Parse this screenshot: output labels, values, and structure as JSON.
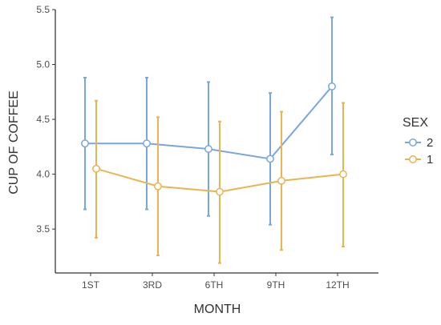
{
  "chart_data": {
    "type": "line",
    "xlabel": "MONTH",
    "ylabel": "CUP OF COFFEE",
    "categories": [
      "1ST",
      "3RD",
      "6TH",
      "9TH",
      "12TH"
    ],
    "y_ticks": [
      "3.5",
      "4.0",
      "4.5",
      "5.0",
      "5.5"
    ],
    "ylim": [
      3.1,
      5.5
    ],
    "grid": false,
    "error_bars": true,
    "legend": {
      "title": "SEX",
      "position": "right"
    },
    "series": [
      {
        "name": "2",
        "color": "#7aa6df",
        "values": [
          4.28,
          4.28,
          4.23,
          4.14,
          4.8
        ],
        "lower": [
          3.68,
          3.68,
          3.62,
          3.54,
          4.18
        ],
        "upper": [
          4.88,
          4.88,
          4.84,
          4.74,
          5.43
        ]
      },
      {
        "name": "1",
        "color": "#e8b552",
        "values": [
          4.05,
          3.89,
          3.84,
          3.94,
          4.0
        ],
        "lower": [
          3.42,
          3.26,
          3.19,
          3.31,
          3.34
        ],
        "upper": [
          4.67,
          4.52,
          4.48,
          4.57,
          4.65
        ]
      }
    ]
  }
}
